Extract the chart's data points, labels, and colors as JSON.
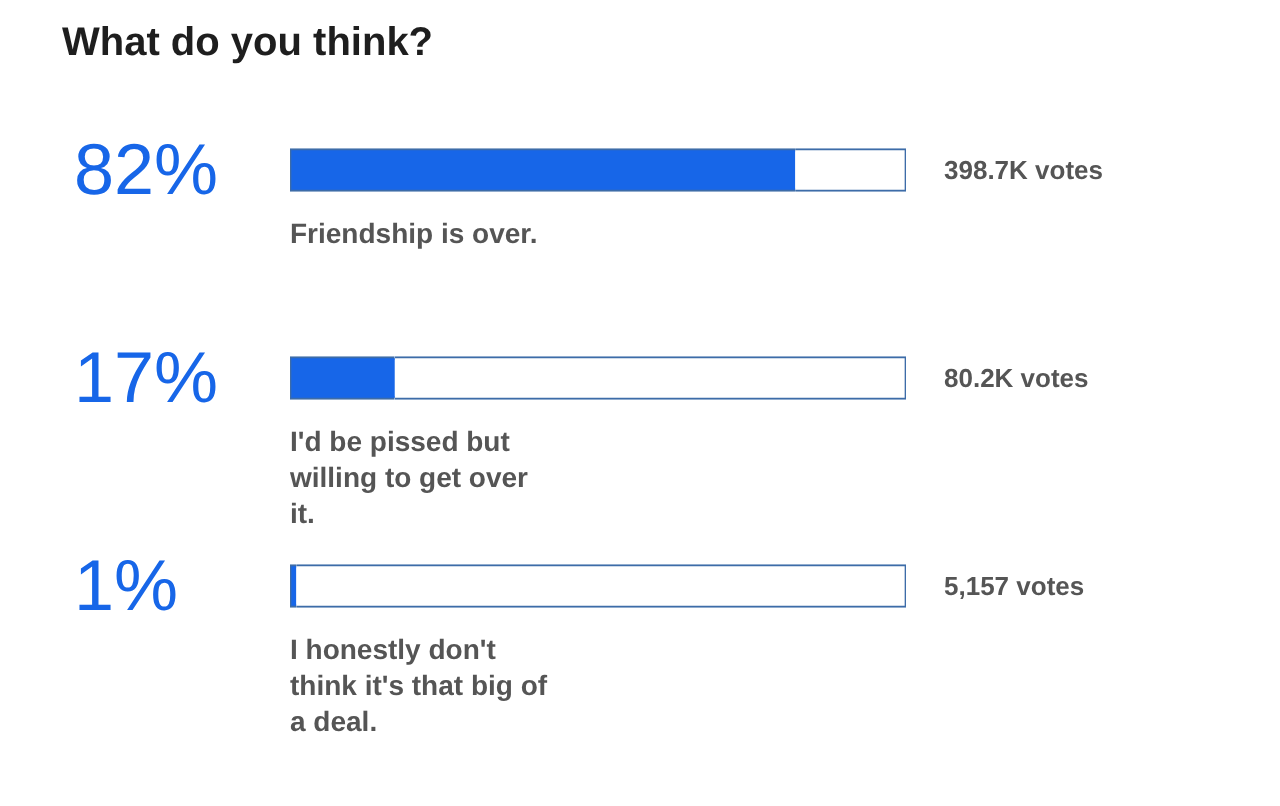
{
  "chart_data": {
    "type": "bar",
    "orientation": "horizontal",
    "stacked": true,
    "title": "What do you think?",
    "categories": [
      "Friendship is over.",
      "I'd be pissed but willing to get over it.",
      "I honestly don't think it's that big of a deal."
    ],
    "series": [
      {
        "color": "#1766e8",
        "values": [
          82,
          17,
          1
        ],
        "value_labels": [
          "82%",
          "17%",
          "1%"
        ]
      },
      {
        "color": "#ffffff",
        "values": [
          18,
          83,
          99
        ]
      }
    ],
    "xlim": [
      0,
      100
    ],
    "tick_labels": false,
    "annotations": [
      "398.7K votes",
      "80.2K votes",
      "5,157 votes"
    ]
  }
}
